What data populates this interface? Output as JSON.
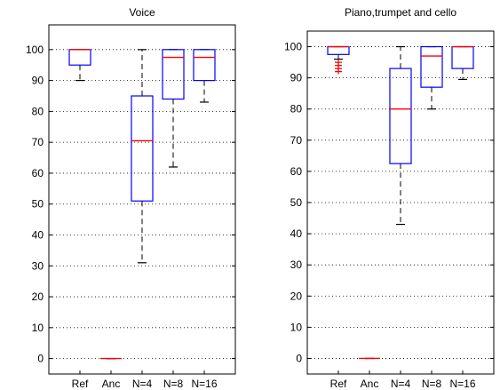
{
  "chart_data": [
    {
      "type": "box",
      "title": "Voice",
      "categories": [
        "Ref",
        "Anc",
        "N=4",
        "N=8",
        "N=16"
      ],
      "ylim": [
        -5,
        108
      ],
      "yticks": [
        0,
        10,
        20,
        30,
        40,
        50,
        60,
        70,
        80,
        90,
        100
      ],
      "grid": "horizontal dotted",
      "colors": {
        "box": "#0000ff",
        "median": "#ff0000",
        "whisker": "#000000",
        "outlier": "#ff0000"
      },
      "boxes": [
        {
          "category": "Ref",
          "whisker_low": 90,
          "q1": 95,
          "median": 100,
          "q3": 100,
          "whisker_high": 100,
          "outliers": []
        },
        {
          "category": "Anc",
          "whisker_low": 0,
          "q1": 0,
          "median": 0,
          "q3": 0,
          "whisker_high": 0,
          "outliers": []
        },
        {
          "category": "N=4",
          "whisker_low": 31,
          "q1": 51,
          "median": 70.5,
          "q3": 85,
          "whisker_high": 100,
          "outliers": []
        },
        {
          "category": "N=8",
          "whisker_low": 62,
          "q1": 84,
          "median": 97.5,
          "q3": 100,
          "whisker_high": 100,
          "outliers": []
        },
        {
          "category": "N=16",
          "whisker_low": 83,
          "q1": 90,
          "median": 97.5,
          "q3": 100,
          "whisker_high": 100,
          "outliers": []
        }
      ]
    },
    {
      "type": "box",
      "title": "Piano,trumpet and cello",
      "categories": [
        "Ref",
        "Anc",
        "N=4",
        "N=8",
        "N=16"
      ],
      "ylim": [
        -5,
        105
      ],
      "yticks": [
        0,
        10,
        20,
        30,
        40,
        50,
        60,
        70,
        80,
        90,
        100
      ],
      "grid": "horizontal dotted",
      "colors": {
        "box": "#0000ff",
        "median": "#ff0000",
        "whisker": "#000000",
        "outlier": "#ff0000"
      },
      "boxes": [
        {
          "category": "Ref",
          "whisker_low": 96,
          "q1": 97.5,
          "median": 100,
          "q3": 100,
          "whisker_high": 100,
          "outliers": [
            95,
            94,
            93,
            92
          ]
        },
        {
          "category": "Anc",
          "whisker_low": 0,
          "q1": 0,
          "median": 0,
          "q3": 0,
          "whisker_high": 0,
          "outliers": []
        },
        {
          "category": "N=4",
          "whisker_low": 43,
          "q1": 62.5,
          "median": 80,
          "q3": 93,
          "whisker_high": 100,
          "outliers": []
        },
        {
          "category": "N=8",
          "whisker_low": 80,
          "q1": 87,
          "median": 97,
          "q3": 100,
          "whisker_high": 100,
          "outliers": []
        },
        {
          "category": "N=16",
          "whisker_low": 89.5,
          "q1": 93,
          "median": 100,
          "q3": 100,
          "whisker_high": 100,
          "outliers": []
        }
      ]
    }
  ]
}
